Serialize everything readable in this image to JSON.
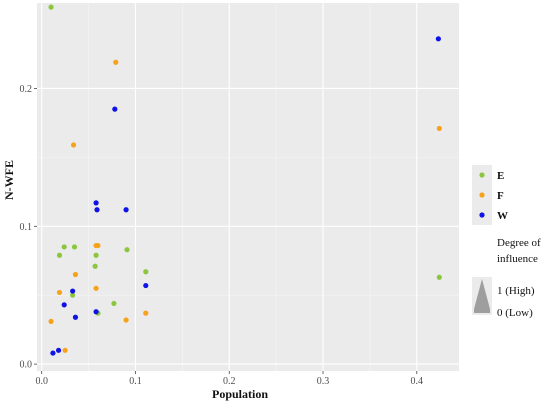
{
  "chart_data": {
    "type": "scatter",
    "xlabel": "Population",
    "ylabel": "N-WFE",
    "xlim": [
      -0.005,
      0.445
    ],
    "ylim": [
      -0.005,
      0.262
    ],
    "x_ticks": [
      "0.0",
      "0.1",
      "0.2",
      "0.3",
      "0.4"
    ],
    "y_ticks": [
      "0.0",
      "0.1",
      "0.2"
    ],
    "background": "#ebebeb",
    "grid": true,
    "legend_position": "right",
    "series": [
      {
        "name": "E",
        "color": "#8cc63f",
        "points": [
          {
            "x": 0.01,
            "y": 0.259
          },
          {
            "x": 0.019,
            "y": 0.079
          },
          {
            "x": 0.024,
            "y": 0.085
          },
          {
            "x": 0.035,
            "y": 0.085
          },
          {
            "x": 0.033,
            "y": 0.05
          },
          {
            "x": 0.057,
            "y": 0.071
          },
          {
            "x": 0.058,
            "y": 0.079
          },
          {
            "x": 0.06,
            "y": 0.037
          },
          {
            "x": 0.077,
            "y": 0.044
          },
          {
            "x": 0.091,
            "y": 0.083
          },
          {
            "x": 0.111,
            "y": 0.067
          },
          {
            "x": 0.424,
            "y": 0.063
          }
        ]
      },
      {
        "name": "F",
        "color": "#f7a21b",
        "points": [
          {
            "x": 0.079,
            "y": 0.219
          },
          {
            "x": 0.034,
            "y": 0.159
          },
          {
            "x": 0.058,
            "y": 0.086
          },
          {
            "x": 0.06,
            "y": 0.086
          },
          {
            "x": 0.036,
            "y": 0.065
          },
          {
            "x": 0.019,
            "y": 0.052
          },
          {
            "x": 0.058,
            "y": 0.055
          },
          {
            "x": 0.01,
            "y": 0.031
          },
          {
            "x": 0.025,
            "y": 0.01
          },
          {
            "x": 0.09,
            "y": 0.032
          },
          {
            "x": 0.111,
            "y": 0.037
          },
          {
            "x": 0.424,
            "y": 0.171
          }
        ]
      },
      {
        "name": "W",
        "color": "#0f13e6",
        "points": [
          {
            "x": 0.078,
            "y": 0.185
          },
          {
            "x": 0.058,
            "y": 0.117
          },
          {
            "x": 0.059,
            "y": 0.112
          },
          {
            "x": 0.09,
            "y": 0.112
          },
          {
            "x": 0.033,
            "y": 0.053
          },
          {
            "x": 0.024,
            "y": 0.043
          },
          {
            "x": 0.036,
            "y": 0.034
          },
          {
            "x": 0.058,
            "y": 0.038
          },
          {
            "x": 0.111,
            "y": 0.057
          },
          {
            "x": 0.012,
            "y": 0.008
          },
          {
            "x": 0.018,
            "y": 0.01
          },
          {
            "x": 0.423,
            "y": 0.236
          }
        ]
      }
    ],
    "legend_size": {
      "title": "Degree of influence",
      "high_label": "1 (High)",
      "low_label": "0 (Low)"
    }
  }
}
